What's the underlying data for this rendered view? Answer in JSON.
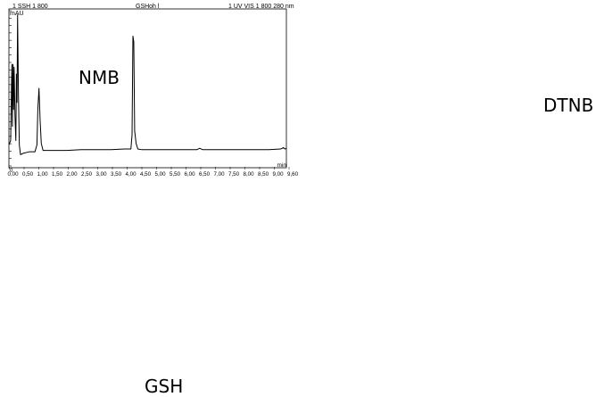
{
  "chart_data": {
    "type": "line",
    "y_unit_label": "mAU",
    "x_unit_label": "min",
    "y_zero_label": "0",
    "header_fragments": [
      "1 SSH 1 800",
      "GSHoh l",
      "1 UV VIS 1 800 280 nm"
    ],
    "x_tick_labels": [
      "0,00",
      "0,50",
      "1,00",
      "1,50",
      "2,00",
      "2,50",
      "3,00",
      "3,50",
      "4,00",
      "4,50",
      "5,00",
      "5,50",
      "6,00",
      "6,50",
      "7,00",
      "7,50",
      "8,00",
      "8,50",
      "9,00",
      "9,60"
    ],
    "xlim": [
      0,
      9.6
    ],
    "ylim": [
      -10,
      100
    ],
    "grid": false,
    "series": [
      {
        "points": [
          [
            0.0,
            5
          ],
          [
            0.06,
            8
          ],
          [
            0.1,
            62
          ],
          [
            0.12,
            18
          ],
          [
            0.14,
            62
          ],
          [
            0.16,
            30
          ],
          [
            0.18,
            60
          ],
          [
            0.21,
            25
          ],
          [
            0.24,
            8
          ],
          [
            0.26,
            55
          ],
          [
            0.28,
            35
          ],
          [
            0.3,
            97
          ],
          [
            0.33,
            40
          ],
          [
            0.36,
            5
          ],
          [
            0.4,
            -2
          ],
          [
            0.5,
            -1
          ],
          [
            0.7,
            0
          ],
          [
            0.9,
            0
          ],
          [
            0.97,
            5
          ],
          [
            1.0,
            30
          ],
          [
            1.04,
            45
          ],
          [
            1.08,
            22
          ],
          [
            1.12,
            6
          ],
          [
            1.18,
            1
          ],
          [
            1.4,
            1
          ],
          [
            2.0,
            1
          ],
          [
            2.5,
            1.5
          ],
          [
            3.0,
            1.5
          ],
          [
            3.5,
            1.5
          ],
          [
            4.0,
            2
          ],
          [
            4.22,
            2
          ],
          [
            4.26,
            12
          ],
          [
            4.29,
            82
          ],
          [
            4.32,
            78
          ],
          [
            4.35,
            15
          ],
          [
            4.4,
            6
          ],
          [
            4.46,
            2
          ],
          [
            4.6,
            1.5
          ],
          [
            5.5,
            1.5
          ],
          [
            6.5,
            1.5
          ],
          [
            6.6,
            2.5
          ],
          [
            6.7,
            1.5
          ],
          [
            7.5,
            1.5
          ],
          [
            8.5,
            1.5
          ],
          [
            9.0,
            1.5
          ],
          [
            9.4,
            2
          ],
          [
            9.5,
            3
          ],
          [
            9.55,
            2
          ],
          [
            9.6,
            2.5
          ]
        ]
      }
    ]
  },
  "annotations": {
    "nmb": "NMB",
    "dtnb": "DTNB",
    "gsh": "GSH"
  }
}
